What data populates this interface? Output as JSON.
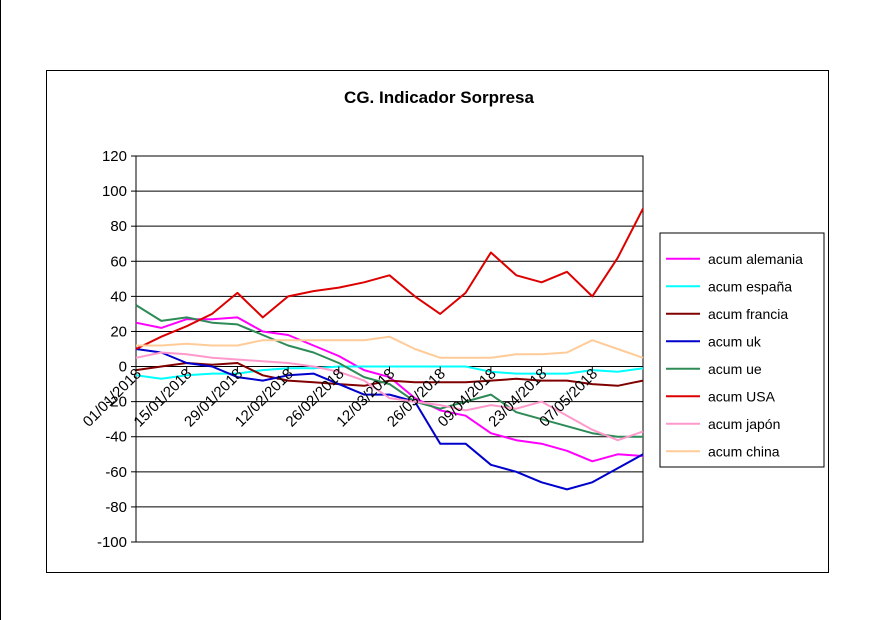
{
  "chart_data": {
    "type": "line",
    "title": "CG. Indicador Sorpresa",
    "xlabel": "",
    "ylabel": "",
    "ylim": [
      -100,
      120
    ],
    "yticks": [
      120,
      100,
      80,
      60,
      40,
      20,
      0,
      -20,
      -40,
      -60,
      -80,
      -100
    ],
    "xticks": [
      "01/01/2018",
      "15/01/2018",
      "29/01/2018",
      "12/02/2018",
      "26/02/2018",
      "12/03/2018",
      "26/03/2018",
      "09/04/2018",
      "23/04/2018",
      "07/05/2018"
    ],
    "x": [
      "01/01/2018",
      "08/01/2018",
      "15/01/2018",
      "22/01/2018",
      "29/01/2018",
      "05/02/2018",
      "12/02/2018",
      "19/02/2018",
      "26/02/2018",
      "05/03/2018",
      "12/03/2018",
      "19/03/2018",
      "26/03/2018",
      "02/04/2018",
      "09/04/2018",
      "16/04/2018",
      "23/04/2018",
      "30/04/2018",
      "07/05/2018",
      "14/05/2018",
      "21/05/2018"
    ],
    "grid": "horizontal",
    "legend": "right",
    "series": [
      {
        "name": "acum alemania",
        "color": "#ff00ff",
        "values": [
          25,
          22,
          27,
          27,
          28,
          20,
          18,
          12,
          6,
          -2,
          -6,
          -18,
          -25,
          -28,
          -38,
          -42,
          -44,
          -48,
          -54,
          -50,
          -51
        ]
      },
      {
        "name": "acum españa",
        "color": "#00ffff",
        "values": [
          -5,
          -7,
          -5,
          -4,
          -4,
          -2,
          -1,
          -1,
          0,
          0,
          0,
          0,
          0,
          0,
          -3,
          -4,
          -4,
          -4,
          -2,
          -3,
          -1
        ]
      },
      {
        "name": "acum francia",
        "color": "#800000",
        "values": [
          -2,
          0,
          2,
          1,
          2,
          -5,
          -8,
          -9,
          -10,
          -11,
          -8,
          -9,
          -9,
          -9,
          -8,
          -7,
          -8,
          -8,
          -10,
          -11,
          -8
        ]
      },
      {
        "name": "acum uk",
        "color": "#0000cc",
        "values": [
          10,
          8,
          2,
          0,
          -6,
          -8,
          -5,
          -4,
          -10,
          -16,
          -16,
          -20,
          -44,
          -44,
          -56,
          -60,
          -66,
          -70,
          -66,
          -58,
          -50
        ]
      },
      {
        "name": "acum ue",
        "color": "#2e8b57",
        "values": [
          35,
          26,
          28,
          25,
          24,
          18,
          12,
          8,
          2,
          -6,
          -10,
          -20,
          -24,
          -20,
          -16,
          -26,
          -30,
          -34,
          -38,
          -40,
          -40
        ]
      },
      {
        "name": "acum USA",
        "color": "#dd0000",
        "values": [
          10,
          17,
          23,
          30,
          42,
          28,
          40,
          43,
          45,
          48,
          52,
          40,
          30,
          42,
          65,
          52,
          48,
          54,
          40,
          62,
          90
        ]
      },
      {
        "name": "acum japón",
        "color": "#ff99cc",
        "values": [
          5,
          8,
          7,
          5,
          4,
          3,
          2,
          0,
          -3,
          -8,
          -18,
          -20,
          -22,
          -25,
          -22,
          -24,
          -20,
          -28,
          -36,
          -42,
          -37
        ]
      },
      {
        "name": "acum china",
        "color": "#ffcc99",
        "values": [
          12,
          12,
          13,
          12,
          12,
          15,
          15,
          15,
          15,
          15,
          17,
          10,
          5,
          5,
          5,
          7,
          7,
          8,
          15,
          10,
          5
        ]
      }
    ]
  }
}
